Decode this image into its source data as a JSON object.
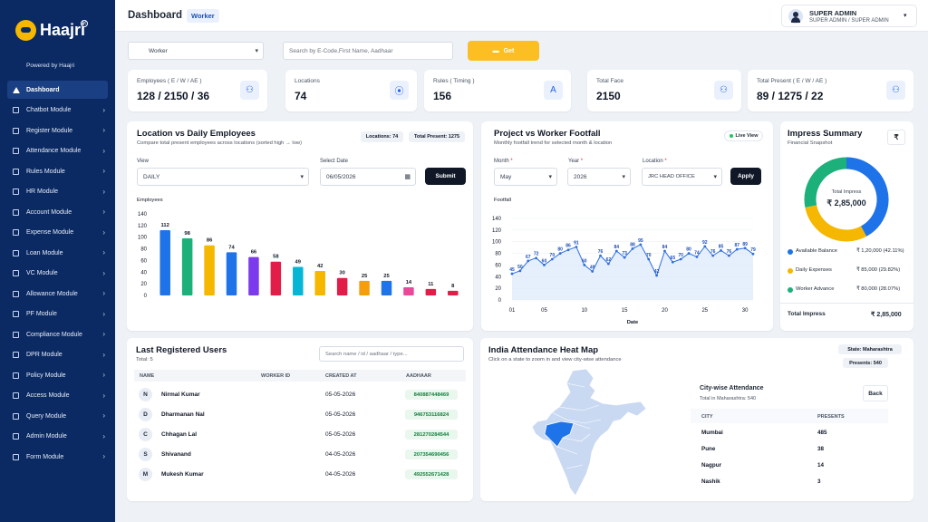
{
  "app": {
    "name": "Haajri",
    "powered_by": "Powered by Haajri"
  },
  "sidebar": {
    "items": [
      {
        "label": "Dashboard",
        "active": true
      },
      {
        "label": "Chatbot Module"
      },
      {
        "label": "Register Module"
      },
      {
        "label": "Attendance Module"
      },
      {
        "label": "Rules Module"
      },
      {
        "label": "HR Module"
      },
      {
        "label": "Account Module"
      },
      {
        "label": "Expense Module"
      },
      {
        "label": "Loan Module"
      },
      {
        "label": "VC Module"
      },
      {
        "label": "Allowance Module"
      },
      {
        "label": "PF Module"
      },
      {
        "label": "Compliance Module"
      },
      {
        "label": "DPR Module"
      },
      {
        "label": "Policy Module"
      },
      {
        "label": "Access Module"
      },
      {
        "label": "Query Module"
      },
      {
        "label": "Admin Module"
      },
      {
        "label": "Form Module"
      }
    ]
  },
  "header": {
    "title": "Dashboard",
    "badge": "Worker",
    "user_name": "SUPER ADMIN",
    "user_role": "SUPER ADMIN / SUPER ADMIN"
  },
  "filters": {
    "type_value": "Worker",
    "search_placeholder": "Search by E-Code,First Name, Aadhaar",
    "get_label": "Get"
  },
  "stats": [
    {
      "label": "Employees ( E / W / AE )",
      "value": "128 / 2150 / 36",
      "icon": "users-icon"
    },
    {
      "label": "Locations",
      "value": "74",
      "icon": "location-pin-icon"
    },
    {
      "label": "Rules ( Timing )",
      "value": "156",
      "icon": "rules-icon"
    },
    {
      "label": "Total Face",
      "value": "2150",
      "icon": "users-icon"
    },
    {
      "label": "Total Present ( E / W / AE )",
      "value": "89 / 1275 / 22",
      "icon": "users-icon"
    }
  ],
  "location_chart": {
    "title": "Location vs Daily Employees",
    "subtitle": "Compare total present employees across locations (sorted high → low)",
    "locations_pill": "Locations: 74",
    "present_pill": "Total Present: 1275",
    "view_label": "View",
    "view_value": "DAILY",
    "date_label": "Select Date",
    "date_value": "06/05/2026",
    "submit_label": "Submit",
    "y_title": "Employees"
  },
  "footfall_chart": {
    "title": "Project vs Worker Footfall",
    "subtitle": "Monthly footfall trend for selected month & location",
    "live_label": "Live View",
    "month_label": "Month",
    "month_value": "May",
    "year_label": "Year",
    "year_value": "2026",
    "location_label": "Location",
    "location_value": "JRC HEAD OFFICE",
    "apply_label": "Apply",
    "y_title": "Footfall",
    "x_title": "Date"
  },
  "impress": {
    "title": "Impress Summary",
    "subtitle": "Financial Snapshot",
    "currency_symbol": "₹",
    "center_label": "Total Impress",
    "center_value": "₹ 2,85,000",
    "legend": [
      {
        "label": "Available Balance",
        "value": "₹ 1,20,000 (42.11%)",
        "color": "#1e73e8"
      },
      {
        "label": "Daily Expenses",
        "value": "₹ 85,000 (29.82%)",
        "color": "#f5b700"
      },
      {
        "label": "Worker Advance",
        "value": "₹ 80,000 (28.07%)",
        "color": "#1cb07a"
      }
    ],
    "total_label": "Total Impress",
    "total_value": "₹ 2,85,000"
  },
  "users": {
    "title": "Last Registered Users",
    "total": "Total: 5",
    "search_placeholder": "Search name / id / aadhaar / type...",
    "columns": [
      "NAME",
      "WORKER ID",
      "CREATED AT",
      "AADHAAR"
    ],
    "rows": [
      {
        "initial": "N",
        "name": "Nirmal Kumar",
        "worker_id": "",
        "created": "05-05-2026",
        "aadhaar": "840887448469"
      },
      {
        "initial": "D",
        "name": "Dharmanan Nal",
        "worker_id": "",
        "created": "05-05-2026",
        "aadhaar": "946753116824"
      },
      {
        "initial": "C",
        "name": "Chhagan Lal",
        "worker_id": "",
        "created": "05-05-2026",
        "aadhaar": "281270284544"
      },
      {
        "initial": "S",
        "name": "Shivanand",
        "worker_id": "",
        "created": "04-05-2026",
        "aadhaar": "207354690456"
      },
      {
        "initial": "M",
        "name": "Mukesh Kumar",
        "worker_id": "",
        "created": "04-05-2026",
        "aadhaar": "492552671428"
      }
    ]
  },
  "heatmap": {
    "title": "India Attendance Heat Map",
    "subtitle": "Click on a state to zoom in and view city-wise attendance",
    "state_pill": "State: Maharashtra",
    "present_pill": "Presents: 540",
    "city_title": "City-wise Attendance",
    "city_sub": "Total in Maharashtra: 540",
    "back_label": "Back",
    "columns": [
      "CITY",
      "PRESENTS"
    ],
    "rows": [
      {
        "city": "Mumbai",
        "value": "485"
      },
      {
        "city": "Pune",
        "value": "38"
      },
      {
        "city": "Nagpur",
        "value": "14"
      },
      {
        "city": "Nashik",
        "value": "3"
      }
    ]
  },
  "chart_data": [
    {
      "type": "bar",
      "ylabel": "Employees",
      "ylim": [
        0,
        140
      ],
      "yticks": [
        0,
        20,
        40,
        60,
        80,
        100,
        120,
        140
      ],
      "values": [
        112,
        98,
        86,
        74,
        66,
        58,
        49,
        42,
        30,
        25,
        25,
        14,
        11,
        8
      ],
      "colors": [
        "#1e73e8",
        "#1cb07a",
        "#f5b700",
        "#1e73e8",
        "#7c3aed",
        "#e11d48",
        "#06b6d4",
        "#f5b700",
        "#e11d48",
        "#f59e0b",
        "#1e73e8",
        "#ec4899",
        "#e11d48",
        "#e11d48"
      ]
    },
    {
      "type": "area",
      "xlabel": "Date",
      "ylabel": "Footfall",
      "ylim": [
        0,
        140
      ],
      "yticks": [
        0,
        20,
        40,
        60,
        80,
        100,
        120,
        140
      ],
      "xticks": [
        1,
        5,
        10,
        15,
        20,
        25,
        30
      ],
      "x": [
        1,
        2,
        3,
        4,
        5,
        6,
        7,
        8,
        9,
        10,
        11,
        12,
        13,
        14,
        15,
        16,
        17,
        18,
        19,
        20,
        21,
        22,
        23,
        24,
        25,
        26,
        27,
        28,
        29,
        30,
        31
      ],
      "values": [
        45,
        50,
        67,
        72,
        60,
        70,
        80,
        86,
        91,
        60,
        49,
        76,
        62,
        84,
        73,
        88,
        95,
        70,
        42,
        84,
        65,
        70,
        80,
        74,
        92,
        76,
        85,
        76,
        87,
        89,
        79
      ]
    },
    {
      "type": "pie",
      "values": [
        120000,
        85000,
        80000
      ],
      "labels": [
        "Available Balance",
        "Daily Expenses",
        "Worker Advance"
      ],
      "colors": [
        "#1e73e8",
        "#f5b700",
        "#1cb07a"
      ]
    }
  ]
}
